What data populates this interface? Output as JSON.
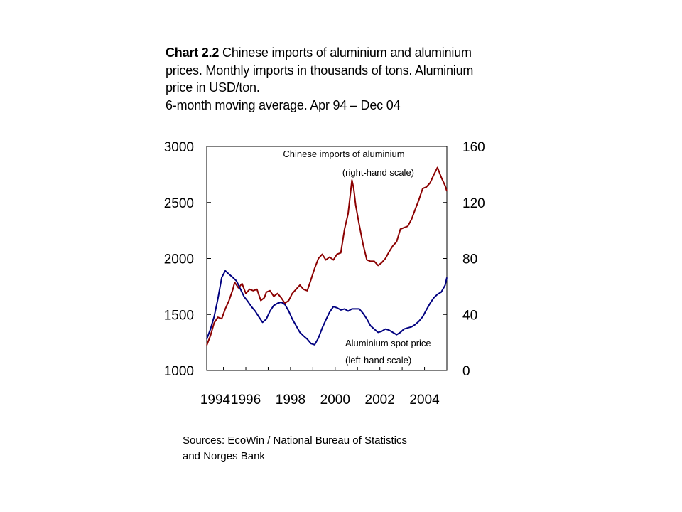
{
  "title": {
    "label": "Chart 2.2",
    "text": "Chinese imports of aluminium and aluminium prices. Monthly imports in thousands of tons. Aluminium price in USD/ton.",
    "line4": "6-month moving average. Apr 94 – Dec 04"
  },
  "source": {
    "line1": "Sources: EcoWin / National Bureau of Statistics",
    "line2": "and Norges Bank"
  },
  "colors": {
    "imports": "#8b0000",
    "price": "#000080",
    "axis": "#000000"
  },
  "chart_data": {
    "type": "line",
    "left_axis": {
      "min": 1000,
      "max": 3000,
      "ticks": [
        "3000",
        "2500",
        "2000",
        "1500",
        "1000"
      ]
    },
    "right_axis": {
      "min": 0,
      "max": 160,
      "ticks": [
        "160",
        "120",
        "80",
        "40",
        "0"
      ]
    },
    "x_axis": {
      "min": 1994,
      "max": 2005,
      "ticks": [
        "1994",
        "1996",
        "1998",
        "2000",
        "2002",
        "2004"
      ]
    },
    "series": [
      {
        "key": "imports",
        "axis": "right",
        "labels": [
          "Chinese imports of aluminium",
          "(right-hand scale)"
        ],
        "points": [
          [
            1994.25,
            18
          ],
          [
            1994.42,
            25
          ],
          [
            1994.58,
            34
          ],
          [
            1994.75,
            38
          ],
          [
            1994.92,
            37
          ],
          [
            1995.08,
            44
          ],
          [
            1995.25,
            50
          ],
          [
            1995.42,
            58
          ],
          [
            1995.5,
            63
          ],
          [
            1995.67,
            59
          ],
          [
            1995.83,
            62
          ],
          [
            1996.0,
            55
          ],
          [
            1996.17,
            58
          ],
          [
            1996.33,
            57
          ],
          [
            1996.5,
            58
          ],
          [
            1996.67,
            50
          ],
          [
            1996.83,
            52
          ],
          [
            1996.92,
            56
          ],
          [
            1997.08,
            57
          ],
          [
            1997.25,
            53
          ],
          [
            1997.42,
            55
          ],
          [
            1997.58,
            52
          ],
          [
            1997.75,
            48
          ],
          [
            1997.92,
            50
          ],
          [
            1998.08,
            55
          ],
          [
            1998.25,
            58
          ],
          [
            1998.42,
            61
          ],
          [
            1998.58,
            58
          ],
          [
            1998.75,
            57
          ],
          [
            1998.92,
            65
          ],
          [
            1999.08,
            73
          ],
          [
            1999.25,
            80
          ],
          [
            1999.42,
            83
          ],
          [
            1999.58,
            79
          ],
          [
            1999.75,
            81
          ],
          [
            1999.92,
            79
          ],
          [
            2000.08,
            83
          ],
          [
            2000.25,
            84
          ],
          [
            2000.42,
            101
          ],
          [
            2000.58,
            112
          ],
          [
            2000.75,
            136
          ],
          [
            2000.83,
            130
          ],
          [
            2000.92,
            118
          ],
          [
            2001.08,
            104
          ],
          [
            2001.25,
            90
          ],
          [
            2001.42,
            79
          ],
          [
            2001.58,
            78
          ],
          [
            2001.75,
            78
          ],
          [
            2001.92,
            75
          ],
          [
            2002.08,
            77
          ],
          [
            2002.25,
            80
          ],
          [
            2002.42,
            85
          ],
          [
            2002.58,
            89
          ],
          [
            2002.75,
            92
          ],
          [
            2002.92,
            101
          ],
          [
            2003.08,
            102
          ],
          [
            2003.25,
            103
          ],
          [
            2003.42,
            108
          ],
          [
            2003.58,
            115
          ],
          [
            2003.75,
            122
          ],
          [
            2003.92,
            130
          ],
          [
            2004.08,
            131
          ],
          [
            2004.25,
            134
          ],
          [
            2004.42,
            140
          ],
          [
            2004.58,
            145
          ],
          [
            2004.75,
            138
          ],
          [
            2004.92,
            132
          ],
          [
            2005.0,
            128
          ]
        ]
      },
      {
        "key": "price",
        "axis": "left",
        "labels": [
          "Aluminium spot price",
          "(left-hand scale)"
        ],
        "points": [
          [
            1994.25,
            1280
          ],
          [
            1994.42,
            1370
          ],
          [
            1994.58,
            1480
          ],
          [
            1994.75,
            1640
          ],
          [
            1994.92,
            1830
          ],
          [
            1995.08,
            1890
          ],
          [
            1995.25,
            1860
          ],
          [
            1995.42,
            1830
          ],
          [
            1995.58,
            1800
          ],
          [
            1995.75,
            1730
          ],
          [
            1995.92,
            1660
          ],
          [
            1996.08,
            1620
          ],
          [
            1996.25,
            1570
          ],
          [
            1996.42,
            1530
          ],
          [
            1996.58,
            1480
          ],
          [
            1996.75,
            1430
          ],
          [
            1996.92,
            1460
          ],
          [
            1997.08,
            1530
          ],
          [
            1997.25,
            1580
          ],
          [
            1997.42,
            1600
          ],
          [
            1997.58,
            1610
          ],
          [
            1997.75,
            1590
          ],
          [
            1997.92,
            1530
          ],
          [
            1998.08,
            1460
          ],
          [
            1998.25,
            1400
          ],
          [
            1998.42,
            1340
          ],
          [
            1998.58,
            1310
          ],
          [
            1998.75,
            1280
          ],
          [
            1998.92,
            1240
          ],
          [
            1999.08,
            1230
          ],
          [
            1999.25,
            1290
          ],
          [
            1999.42,
            1380
          ],
          [
            1999.58,
            1450
          ],
          [
            1999.75,
            1520
          ],
          [
            1999.92,
            1570
          ],
          [
            2000.08,
            1560
          ],
          [
            2000.25,
            1540
          ],
          [
            2000.42,
            1550
          ],
          [
            2000.58,
            1530
          ],
          [
            2000.75,
            1550
          ],
          [
            2000.92,
            1550
          ],
          [
            2001.08,
            1550
          ],
          [
            2001.25,
            1510
          ],
          [
            2001.42,
            1460
          ],
          [
            2001.58,
            1400
          ],
          [
            2001.75,
            1370
          ],
          [
            2001.92,
            1340
          ],
          [
            2002.08,
            1350
          ],
          [
            2002.25,
            1370
          ],
          [
            2002.42,
            1360
          ],
          [
            2002.58,
            1340
          ],
          [
            2002.75,
            1320
          ],
          [
            2002.92,
            1340
          ],
          [
            2003.08,
            1370
          ],
          [
            2003.25,
            1380
          ],
          [
            2003.42,
            1390
          ],
          [
            2003.58,
            1410
          ],
          [
            2003.75,
            1440
          ],
          [
            2003.92,
            1480
          ],
          [
            2004.08,
            1540
          ],
          [
            2004.25,
            1600
          ],
          [
            2004.42,
            1650
          ],
          [
            2004.58,
            1680
          ],
          [
            2004.75,
            1700
          ],
          [
            2004.92,
            1760
          ],
          [
            2005.0,
            1830
          ]
        ]
      }
    ]
  }
}
